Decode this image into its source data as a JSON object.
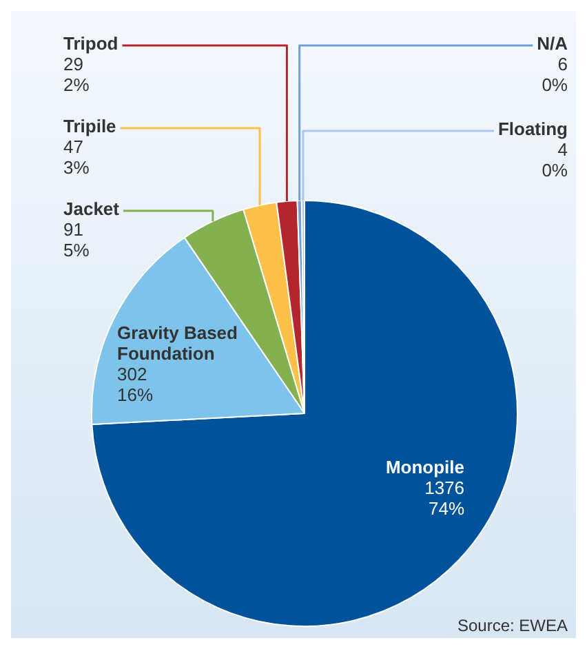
{
  "chart_data": {
    "type": "pie",
    "categories": [
      "Monopile",
      "Gravity Based Foundation",
      "Jacket",
      "Tripile",
      "Tripod",
      "N/A",
      "Floating"
    ],
    "values": [
      1376,
      302,
      91,
      47,
      29,
      6,
      4
    ],
    "colors": [
      "#00539b",
      "#7dc3ea",
      "#84b04f",
      "#fdc04a",
      "#b3262e",
      "#6f9fd8",
      "#a9c8ec"
    ],
    "value_labels": [
      "1376\n74%",
      "302\n16%",
      "91\n5%",
      "47\n3%",
      "29\n2%",
      "6\n0%",
      "4\n0%"
    ],
    "annotations": [
      "Source: EWEA"
    ],
    "legend": false
  }
}
